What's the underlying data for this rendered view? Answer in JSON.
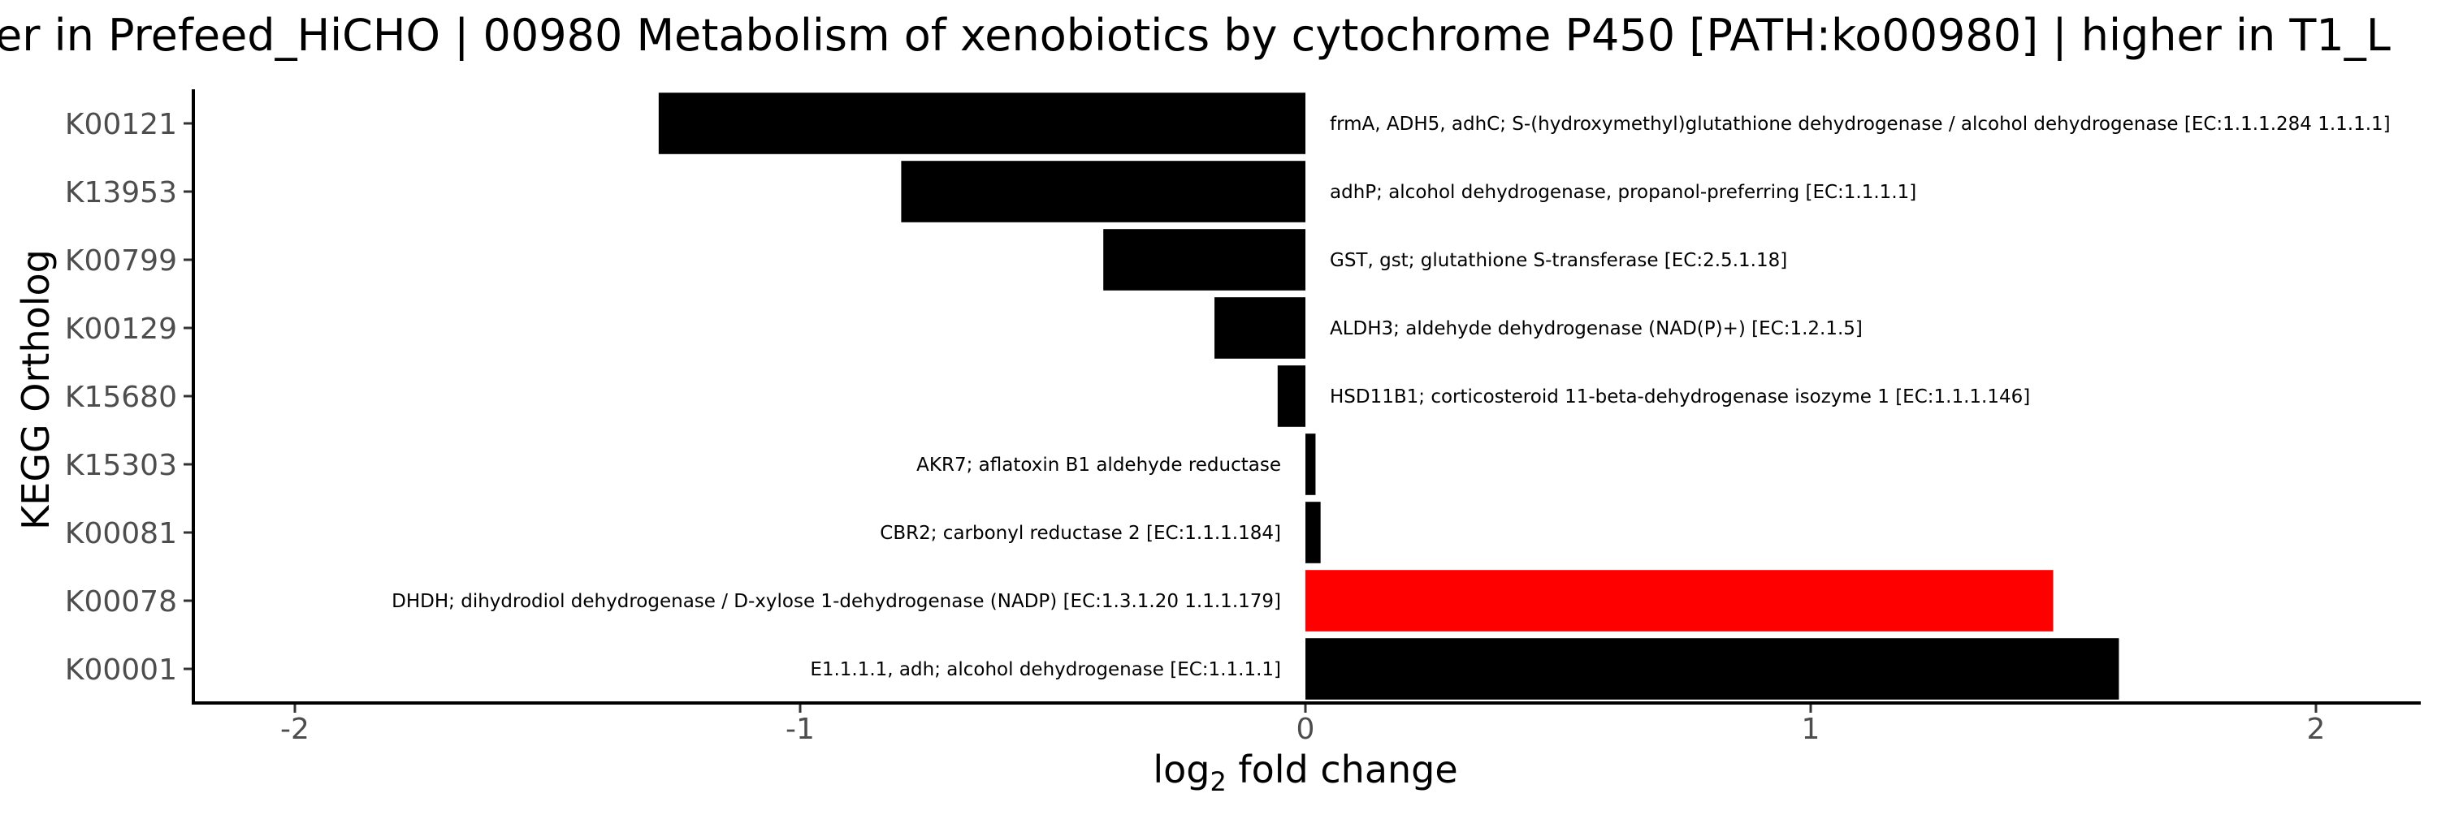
{
  "chart_data": {
    "type": "bar",
    "orientation": "horizontal",
    "title": "er in Prefeed_HiCHO | 00980 Metabolism of xenobiotics by cytochrome P450 [PATH:ko00980] | higher in T1_L",
    "xlabel": "log2 fold change",
    "xlabel_parts": {
      "base": "log",
      "sub": "2",
      "rest": " fold change"
    },
    "ylabel": "KEGG Ortholog",
    "xlim": [
      -2.2,
      2.2
    ],
    "xticks": [
      -2,
      -1,
      0,
      1,
      2
    ],
    "xtick_labels": [
      "-2",
      "-1",
      "0",
      "1",
      "2"
    ],
    "grid": false,
    "categories": [
      "K00121",
      "K13953",
      "K00799",
      "K00129",
      "K15680",
      "K15303",
      "K00081",
      "K00078",
      "K00001"
    ],
    "values": [
      -1.28,
      -0.8,
      -0.4,
      -0.18,
      -0.055,
      0.02,
      0.03,
      1.48,
      1.61
    ],
    "labels": [
      "frmA, ADH5, adhC; S-(hydroxymethyl)glutathione dehydrogenase / alcohol dehydrogenase [EC:1.1.1.284 1.1.1.1]",
      "adhP; alcohol dehydrogenase, propanol-preferring [EC:1.1.1.1]",
      "GST, gst; glutathione S-transferase [EC:2.5.1.18]",
      "ALDH3; aldehyde dehydrogenase (NAD(P)+) [EC:1.2.1.5]",
      "HSD11B1; corticosteroid 11-beta-dehydrogenase isozyme 1 [EC:1.1.1.146]",
      "AKR7; aflatoxin B1 aldehyde reductase",
      "CBR2; carbonyl reductase 2 [EC:1.1.1.184]",
      "DHDH; dihydrodiol dehydrogenase / D-xylose 1-dehydrogenase (NADP) [EC:1.3.1.20 1.1.1.179]",
      "E1.1.1.1, adh; alcohol dehydrogenase [EC:1.1.1.1]"
    ],
    "colors": [
      "#000000",
      "#000000",
      "#000000",
      "#000000",
      "#000000",
      "#000000",
      "#000000",
      "#ff0000",
      "#000000"
    ]
  }
}
